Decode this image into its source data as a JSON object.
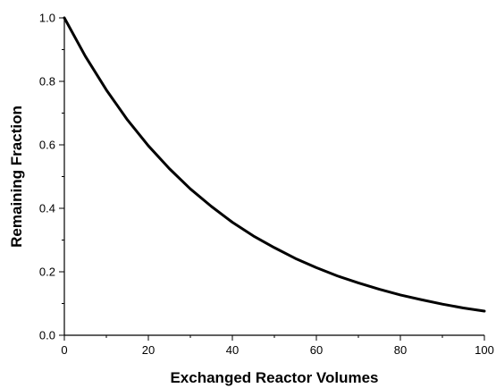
{
  "chart_data": {
    "type": "line",
    "xlabel": "Exchanged Reactor Volumes",
    "ylabel": "Remaining Fraction",
    "xlim": [
      0,
      100
    ],
    "ylim": [
      0,
      1.0
    ],
    "x_ticks": [
      "0",
      "20",
      "40",
      "60",
      "80",
      "100"
    ],
    "y_ticks": [
      "0.0",
      "0.2",
      "0.4",
      "0.6",
      "0.8",
      "1.0"
    ],
    "x_minor_step": 10,
    "y_minor_step": 0.1,
    "grid": false,
    "legend": "none",
    "line_color": "#000000",
    "series": [
      {
        "x": [
          0,
          5,
          10,
          15,
          20,
          25,
          30,
          35,
          40,
          45,
          50,
          55,
          60,
          65,
          70,
          75,
          80,
          85,
          90,
          95,
          100
        ],
        "y": [
          1.0,
          0.879,
          0.773,
          0.679,
          0.597,
          0.525,
          0.461,
          0.406,
          0.356,
          0.313,
          0.276,
          0.242,
          0.213,
          0.187,
          0.165,
          0.145,
          0.127,
          0.112,
          0.098,
          0.086,
          0.076
        ]
      }
    ]
  }
}
